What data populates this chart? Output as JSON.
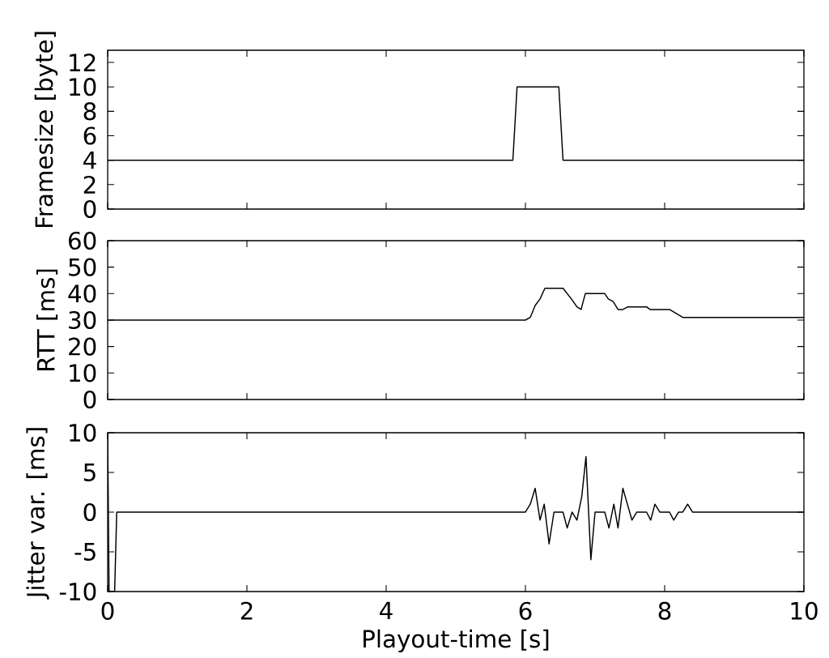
{
  "chart_data": [
    {
      "type": "line",
      "ylabel": "Framesize [byte]",
      "x": [
        0,
        5.82,
        5.88,
        6.48,
        6.54,
        10
      ],
      "values": [
        4,
        4,
        10,
        10,
        4,
        4
      ],
      "color": "#000000",
      "xlim": [
        0,
        10
      ],
      "xticks": [
        0,
        2,
        4,
        6,
        8,
        10
      ],
      "ylim": [
        0,
        13
      ],
      "yticks": [
        0,
        2,
        4,
        6,
        8,
        10,
        12
      ],
      "tick_labels": "y"
    },
    {
      "type": "line",
      "ylabel": "RTT [ms]",
      "x": [
        0,
        6.0,
        6.07,
        6.14,
        6.21,
        6.28,
        6.54,
        6.66,
        6.74,
        6.8,
        6.86,
        7.14,
        7.19,
        7.26,
        7.33,
        7.4,
        7.47,
        7.74,
        7.79,
        8.07,
        8.26,
        10
      ],
      "values": [
        30,
        30,
        31,
        35.5,
        38,
        42,
        42,
        38,
        35,
        34,
        40,
        40,
        38,
        37,
        34,
        34,
        35,
        35,
        34,
        34,
        31,
        31
      ],
      "color": "#000000",
      "xlim": [
        0,
        10
      ],
      "xticks": [
        0,
        2,
        4,
        6,
        8,
        10
      ],
      "ylim": [
        0,
        60
      ],
      "yticks": [
        0,
        10,
        20,
        30,
        40,
        50,
        60
      ],
      "tick_labels": "y"
    },
    {
      "type": "line",
      "ylabel": "Jitter var. [ms]",
      "xlabel": "Playout-time [s]",
      "x": [
        0,
        0.02,
        0.1,
        0.13,
        6.0,
        6.07,
        6.14,
        6.21,
        6.27,
        6.34,
        6.41,
        6.54,
        6.6,
        6.67,
        6.74,
        6.81,
        6.87,
        6.94,
        7.0,
        7.14,
        7.2,
        7.27,
        7.33,
        7.4,
        7.53,
        7.6,
        7.74,
        7.8,
        7.86,
        7.93,
        8.07,
        8.13,
        8.2,
        8.26,
        8.33,
        8.4,
        10
      ],
      "values": [
        10,
        -10,
        -10,
        0,
        0,
        1,
        3,
        -1,
        1,
        -4,
        0,
        0,
        -2,
        0,
        -1,
        2,
        7,
        -6,
        0,
        0,
        -2,
        1,
        -2,
        3,
        -1,
        0,
        0,
        -1,
        1,
        0,
        0,
        -1,
        0,
        0,
        1,
        0,
        0
      ],
      "color": "#000000",
      "xlim": [
        0,
        10
      ],
      "xticks": [
        0,
        2,
        4,
        6,
        8,
        10
      ],
      "ylim": [
        -10,
        10
      ],
      "yticks": [
        -10,
        -5,
        0,
        5,
        10
      ]
    }
  ]
}
